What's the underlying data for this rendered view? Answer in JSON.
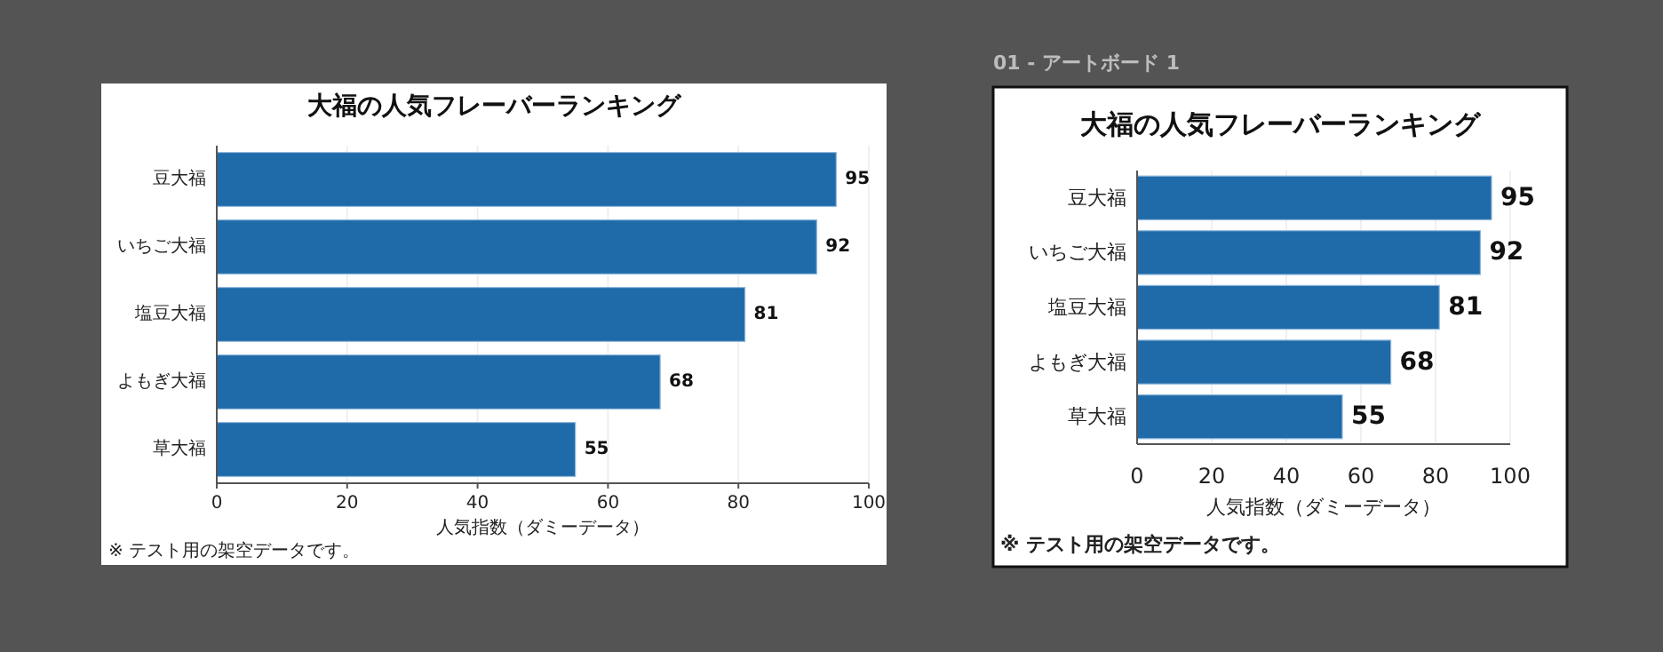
{
  "chart_data": [
    {
      "type": "bar",
      "orientation": "horizontal",
      "title": "大福の人気フレーバーランキング",
      "xlabel": "人気指数（ダミーデータ）",
      "categories": [
        "豆大福",
        "いちご大福",
        "塩豆大福",
        "よもぎ大福",
        "草大福"
      ],
      "values": [
        95,
        92,
        81,
        68,
        55
      ],
      "color": "#1f6aa8",
      "xlim": [
        0,
        100
      ],
      "xticks": [
        0,
        20,
        40,
        60,
        80,
        100
      ],
      "grid": "x",
      "data_labels": true,
      "annotations": [
        "※ テスト用の架空データです。"
      ]
    },
    {
      "type": "bar",
      "orientation": "horizontal",
      "title": "大福の人気フレーバーランキング",
      "xlabel": "人気指数（ダミーデータ）",
      "categories": [
        "豆大福",
        "いちご大福",
        "塩豆大福",
        "よもぎ大福",
        "草大福"
      ],
      "values": [
        95,
        92,
        81,
        68,
        55
      ],
      "color": "#1f6aa8",
      "xlim": [
        0,
        100
      ],
      "xticks": [
        0,
        20,
        40,
        60,
        80,
        100
      ],
      "grid": "x",
      "data_labels": true,
      "annotations": [
        "01 - アートボード 1",
        "※ テスト用の架空データです。"
      ]
    }
  ]
}
